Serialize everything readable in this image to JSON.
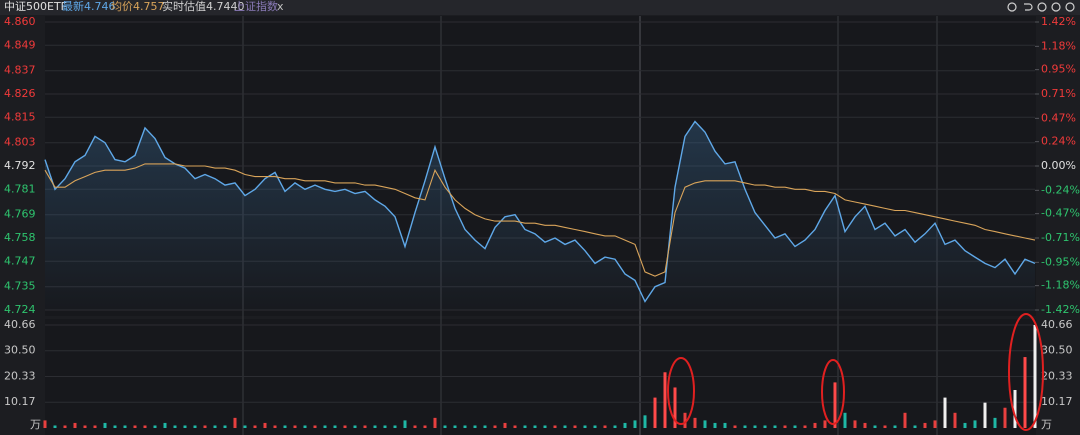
{
  "header": {
    "title": "中证500ETF",
    "latest": "最新4.746",
    "average": "均价4.757",
    "estimate": "实时估值4.7440",
    "index": "上证指数",
    "close": "x"
  },
  "chart_data": [
    {
      "type": "line",
      "yticks": [
        {
          "value": 4.86,
          "label": "4.860"
        },
        4.849,
        4.837,
        4.826,
        4.815,
        4.803,
        4.792,
        4.781,
        4.769,
        4.758,
        4.747,
        4.735,
        4.724
      ],
      "ylim": [
        4.724,
        4.86
      ],
      "y2lim": [
        -1.42,
        1.42
      ],
      "y2ticks": [
        {
          "value": 1.42,
          "label": "1.42%"
        },
        {
          "value": 1.18,
          "label": "1.18%"
        },
        {
          "value": 0.95,
          "label": "0.95%"
        },
        {
          "value": 0.71,
          "label": "0.71%"
        },
        {
          "value": 0.47,
          "label": "0.47%"
        },
        {
          "value": 0.24,
          "label": "0.24%"
        },
        {
          "value": 0,
          "label": "0.00%"
        },
        {
          "value": -0.24,
          "label": "-0.24%"
        },
        {
          "value": -0.47,
          "label": "-0.47%"
        },
        {
          "value": -0.71,
          "label": "-0.71%"
        },
        {
          "value": -0.95,
          "label": "-0.95%"
        },
        {
          "value": -1.18,
          "label": "-1.18%"
        },
        {
          "value": -1.42,
          "label": "-1.42%"
        }
      ],
      "grid": true,
      "series": [
        {
          "color": "#5fa8e8",
          "values": [
            4.795,
            4.781,
            4.786,
            4.794,
            4.797,
            4.806,
            4.803,
            4.795,
            4.794,
            4.797,
            4.81,
            4.805,
            4.796,
            4.793,
            4.791,
            4.786,
            4.788,
            4.786,
            4.783,
            4.784,
            4.778,
            4.781,
            4.786,
            4.789,
            4.78,
            4.784,
            4.781,
            4.783,
            4.781,
            4.78,
            4.781,
            4.779,
            4.78,
            4.776,
            4.773,
            4.768,
            4.754,
            4.77,
            4.785,
            4.801,
            4.786,
            4.772,
            4.762,
            4.757,
            4.753,
            4.763,
            4.768,
            4.769,
            4.762,
            4.76,
            4.756,
            4.758,
            4.755,
            4.757,
            4.752,
            4.746,
            4.749,
            4.748,
            4.741,
            4.738,
            4.728,
            4.735,
            4.737,
            4.782,
            4.806,
            4.813,
            4.808,
            4.799,
            4.793,
            4.794,
            4.781,
            4.77,
            4.764,
            4.758,
            4.76,
            4.754,
            4.757,
            4.762,
            4.771,
            4.778,
            4.761,
            4.768,
            4.773,
            4.762,
            4.765,
            4.759,
            4.762,
            4.756,
            4.76,
            4.765,
            4.755,
            4.757,
            4.752,
            4.749,
            4.746,
            4.744,
            4.748,
            4.741,
            4.748,
            4.746
          ]
        },
        {
          "color": "#d9a45a",
          "values": [
            4.79,
            4.782,
            4.782,
            4.785,
            4.787,
            4.789,
            4.79,
            4.79,
            4.79,
            4.791,
            4.793,
            4.793,
            4.793,
            4.793,
            4.792,
            4.792,
            4.792,
            4.791,
            4.791,
            4.79,
            4.788,
            4.787,
            4.787,
            4.787,
            4.786,
            4.786,
            4.785,
            4.785,
            4.785,
            4.784,
            4.784,
            4.784,
            4.783,
            4.783,
            4.782,
            4.781,
            4.779,
            4.777,
            4.776,
            4.79,
            4.782,
            4.776,
            4.772,
            4.769,
            4.767,
            4.766,
            4.766,
            4.766,
            4.765,
            4.765,
            4.764,
            4.764,
            4.763,
            4.762,
            4.761,
            4.76,
            4.759,
            4.759,
            4.757,
            4.755,
            4.742,
            4.74,
            4.742,
            4.77,
            4.782,
            4.784,
            4.785,
            4.785,
            4.785,
            4.785,
            4.784,
            4.783,
            4.783,
            4.782,
            4.782,
            4.781,
            4.781,
            4.78,
            4.78,
            4.779,
            4.776,
            4.775,
            4.774,
            4.773,
            4.772,
            4.771,
            4.771,
            4.77,
            4.769,
            4.768,
            4.767,
            4.766,
            4.765,
            4.764,
            4.762,
            4.761,
            4.76,
            4.759,
            4.758,
            4.757
          ]
        }
      ]
    },
    {
      "type": "bar",
      "unit": "万",
      "ylim": [
        0,
        40.66
      ],
      "yticks": [
        40.66,
        {
          "value": 30.5,
          "label": "30.50"
        },
        20.33,
        10.17
      ],
      "grid": true,
      "values": [
        3,
        1,
        1,
        2,
        1,
        1,
        2,
        1,
        1,
        1,
        1,
        1,
        2,
        1,
        1,
        1,
        1,
        1,
        1,
        4,
        1,
        1,
        2,
        1,
        1,
        1,
        1,
        1,
        1,
        1,
        1,
        1,
        1,
        1,
        1,
        1,
        3,
        1,
        1,
        4,
        1,
        1,
        1,
        1,
        1,
        1,
        2,
        1,
        1,
        1,
        1,
        1,
        1,
        1,
        1,
        1,
        1,
        1,
        2,
        3,
        5,
        12,
        22,
        16,
        6,
        4,
        3,
        2,
        2,
        1,
        1,
        1,
        1,
        1,
        1,
        1,
        1,
        2,
        3,
        18,
        6,
        3,
        2,
        1,
        1,
        1,
        6,
        1,
        2,
        3,
        12,
        6,
        2,
        3,
        10,
        4,
        8,
        15,
        28,
        40.66
      ]
    }
  ]
}
